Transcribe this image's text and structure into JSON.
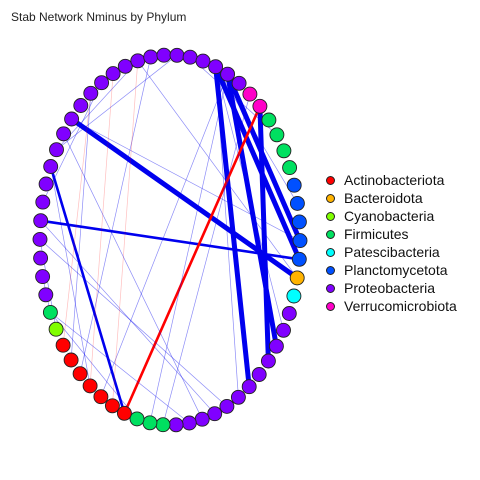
{
  "title": "Stab Network Nminus by Phylum",
  "legend": [
    {
      "label": "Actinobacteriota",
      "color": "#ff0000"
    },
    {
      "label": "Bacteroidota",
      "color": "#ffb300"
    },
    {
      "label": "Cyanobacteria",
      "color": "#80ff00"
    },
    {
      "label": "Firmicutes",
      "color": "#00e060"
    },
    {
      "label": "Patescibacteria",
      "color": "#00ffff"
    },
    {
      "label": "Planctomycetota",
      "color": "#0050ff"
    },
    {
      "label": "Proteobacteria",
      "color": "#8000ff"
    },
    {
      "label": "Verrucomicrobiota",
      "color": "#ff00c8"
    }
  ],
  "network": {
    "node_sequence": [
      "Proteobacteria",
      "Proteobacteria",
      "Proteobacteria",
      "Proteobacteria",
      "Proteobacteria",
      "Proteobacteria",
      "Proteobacteria",
      "Proteobacteria",
      "Proteobacteria",
      "Proteobacteria",
      "Proteobacteria",
      "Proteobacteria",
      "Proteobacteria",
      "Proteobacteria",
      "Proteobacteria",
      "Proteobacteria",
      "Proteobacteria",
      "Proteobacteria",
      "Proteobacteria",
      "Proteobacteria",
      "Proteobacteria",
      "Proteobacteria",
      "Verrucomicrobiota",
      "Verrucomicrobiota",
      "Firmicutes",
      "Firmicutes",
      "Firmicutes",
      "Firmicutes",
      "Planctomycetota",
      "Planctomycetota",
      "Planctomycetota",
      "Planctomycetota",
      "Planctomycetota",
      "Bacteroidota",
      "Patescibacteria",
      "Proteobacteria",
      "Proteobacteria",
      "Proteobacteria",
      "Proteobacteria",
      "Proteobacteria",
      "Proteobacteria",
      "Proteobacteria",
      "Proteobacteria",
      "Proteobacteria",
      "Proteobacteria",
      "Proteobacteria",
      "Proteobacteria",
      "Firmicutes",
      "Firmicutes",
      "Firmicutes",
      "Actinobacteriota",
      "Actinobacteriota",
      "Actinobacteriota",
      "Actinobacteriota",
      "Actinobacteriota",
      "Actinobacteriota",
      "Actinobacteriota",
      "Cyanobacteria",
      "Firmicutes",
      "Proteobacteria",
      "Proteobacteria",
      "Proteobacteria"
    ],
    "edges": [
      {
        "from": 19,
        "to": 40,
        "sign": "positive",
        "weight": "strong"
      },
      {
        "from": 20,
        "to": 37,
        "sign": "positive",
        "weight": "strong"
      },
      {
        "from": 20,
        "to": 31,
        "sign": "positive",
        "weight": "strong"
      },
      {
        "from": 19,
        "to": 32,
        "sign": "positive",
        "weight": "strong"
      },
      {
        "from": 23,
        "to": 38,
        "sign": "positive",
        "weight": "strong"
      },
      {
        "from": 7,
        "to": 33,
        "sign": "positive",
        "weight": "strong"
      },
      {
        "from": 4,
        "to": 50,
        "sign": "positive",
        "weight": "medium"
      },
      {
        "from": 1,
        "to": 32,
        "sign": "positive",
        "weight": "medium"
      },
      {
        "from": 23,
        "to": 50,
        "sign": "negative",
        "weight": "medium"
      },
      {
        "from": 0,
        "to": 57,
        "sign": "positive",
        "weight": "weak"
      },
      {
        "from": 5,
        "to": 13,
        "sign": "positive",
        "weight": "weak"
      },
      {
        "from": 14,
        "to": 54,
        "sign": "positive",
        "weight": "weak"
      },
      {
        "from": 20,
        "to": 48,
        "sign": "positive",
        "weight": "weak"
      },
      {
        "from": 22,
        "to": 47,
        "sign": "positive",
        "weight": "weak"
      },
      {
        "from": 13,
        "to": 33,
        "sign": "positive",
        "weight": "weak"
      },
      {
        "from": 9,
        "to": 55,
        "sign": "positive",
        "weight": "weak"
      },
      {
        "from": 2,
        "to": 10,
        "sign": "positive",
        "weight": "weak"
      },
      {
        "from": 19,
        "to": 29,
        "sign": "positive",
        "weight": "weak"
      },
      {
        "from": 1,
        "to": 43,
        "sign": "positive",
        "weight": "weak"
      },
      {
        "from": 0,
        "to": 42,
        "sign": "positive",
        "weight": "weak"
      },
      {
        "from": 7,
        "to": 31,
        "sign": "positive",
        "weight": "weak"
      },
      {
        "from": 20,
        "to": 52,
        "sign": "positive",
        "weight": "weak"
      },
      {
        "from": 19,
        "to": 36,
        "sign": "positive",
        "weight": "weak"
      },
      {
        "from": 19,
        "to": 41,
        "sign": "positive",
        "weight": "weak"
      },
      {
        "from": 58,
        "to": 60,
        "sign": "positive",
        "weight": "weak"
      },
      {
        "from": 56,
        "to": 9,
        "sign": "negative",
        "weight": "weak"
      },
      {
        "from": 53,
        "to": 11,
        "sign": "negative",
        "weight": "weak"
      },
      {
        "from": 51,
        "to": 13,
        "sign": "negative",
        "weight": "weak"
      },
      {
        "from": 6,
        "to": 44,
        "sign": "positive",
        "weight": "weak"
      },
      {
        "from": 4,
        "to": 53,
        "sign": "positive",
        "weight": "weak"
      },
      {
        "from": 45,
        "to": 58,
        "sign": "positive",
        "weight": "weak"
      },
      {
        "from": 25,
        "to": 17,
        "sign": "positive",
        "weight": "weak"
      },
      {
        "from": 49,
        "to": 58,
        "sign": "positive",
        "weight": "weak"
      },
      {
        "from": 16,
        "to": 5,
        "sign": "positive",
        "weight": "weak"
      }
    ]
  }
}
